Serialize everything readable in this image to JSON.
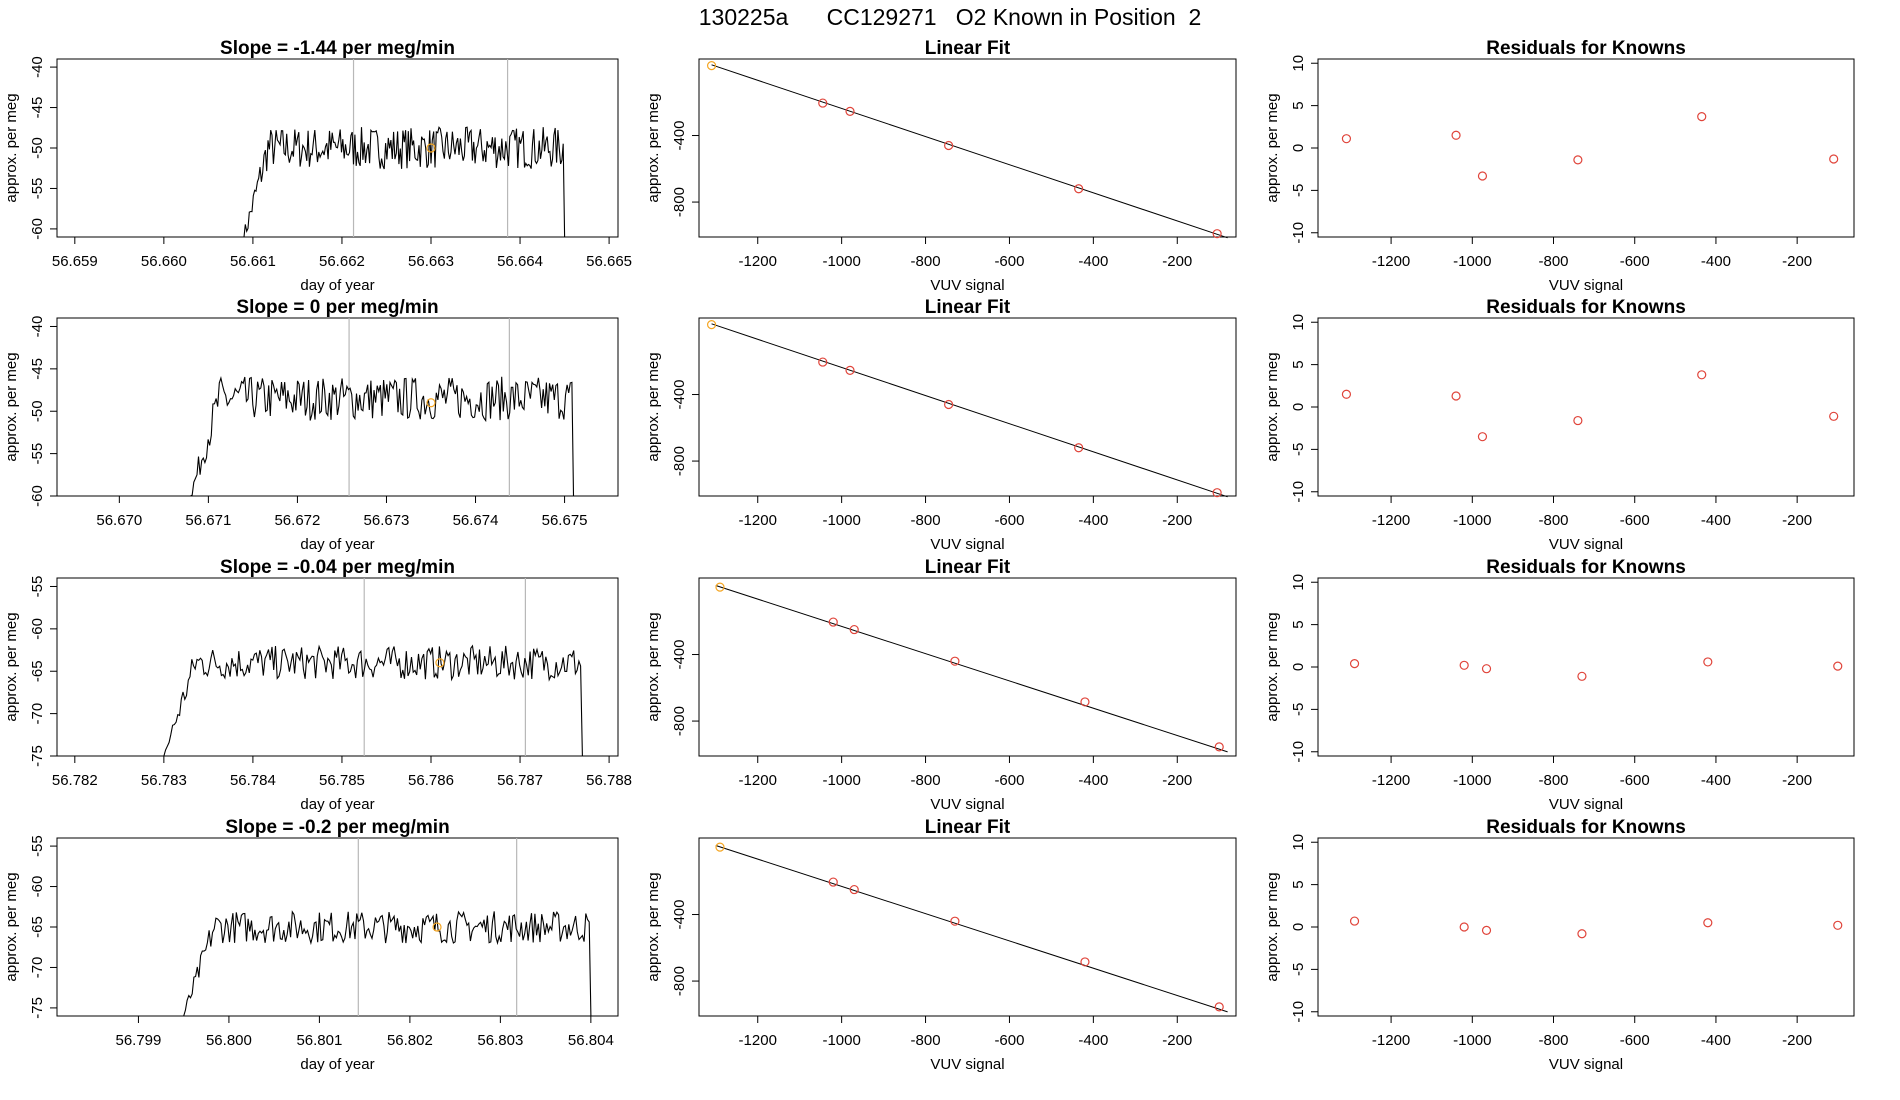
{
  "page_title": "130225a      CC129271   O2 Known in Position  2",
  "colors": {
    "line": "#000000",
    "marker_red": "#e0443a",
    "marker_orange": "#f5a623",
    "vline": "#b8b8b8"
  },
  "chart_data": [
    {
      "type": "line",
      "title": "Slope =  -1.44  per meg/min",
      "xlabel": "day of year",
      "ylabel": "approx. per meg",
      "xlim": [
        56.6588,
        56.6651
      ],
      "ylim": [
        -61,
        -39
      ],
      "xticks": [
        "56.659",
        "56.660",
        "56.661",
        "56.662",
        "56.663",
        "56.664",
        "56.665"
      ],
      "xtick_values": [
        56.659,
        56.66,
        56.661,
        56.662,
        56.663,
        56.664,
        56.665
      ],
      "yticks": [
        "-60",
        "-55",
        "-50",
        "-45",
        "-40"
      ],
      "ytick_values": [
        -60,
        -55,
        -50,
        -45,
        -40
      ],
      "trace_start": 56.6609,
      "trace_end": 56.6645,
      "trace_mean": -50,
      "trace_noise": 2.6,
      "vlines": [
        56.66213,
        56.66386
      ],
      "marker": {
        "x": 56.663,
        "y": -50
      }
    },
    {
      "type": "scatter",
      "title": "Linear Fit",
      "xlabel": "VUV signal",
      "ylabel": "approx. per meg",
      "xlim": [
        -1340,
        -60
      ],
      "ylim": [
        -1010,
        60
      ],
      "xticks": [
        "-1200",
        "-1000",
        "-800",
        "-600",
        "-400",
        "-200"
      ],
      "xtick_values": [
        -1200,
        -1000,
        -800,
        -600,
        -400,
        -200
      ],
      "yticks": [
        "-400",
        "-800"
      ],
      "ytick_values": [
        -400,
        -800
      ],
      "points": [
        [
          -1310,
          20
        ],
        [
          -1045,
          -205
        ],
        [
          -980,
          -255
        ],
        [
          -745,
          -460
        ],
        [
          -435,
          -720
        ],
        [
          -105,
          -990
        ]
      ],
      "fit": [
        [
          -1310,
          25
        ],
        [
          -80,
          -1015
        ]
      ]
    },
    {
      "type": "scatter",
      "title": "Residuals for Knowns",
      "xlabel": "VUV signal",
      "ylabel": "approx. per meg",
      "xlim": [
        -1380,
        -60
      ],
      "ylim": [
        -10.5,
        10.5
      ],
      "xticks": [
        "-1200",
        "-1000",
        "-800",
        "-600",
        "-400",
        "-200"
      ],
      "xtick_values": [
        -1200,
        -1000,
        -800,
        -600,
        -400,
        -200
      ],
      "yticks": [
        "-10",
        "-5",
        "0",
        "5",
        "10"
      ],
      "ytick_values": [
        -10,
        -5,
        0,
        5,
        10
      ],
      "points": [
        [
          -1310,
          1.1
        ],
        [
          -1040,
          1.5
        ],
        [
          -975,
          -3.3
        ],
        [
          -740,
          -1.4
        ],
        [
          -435,
          3.7
        ],
        [
          -110,
          -1.3
        ]
      ]
    },
    {
      "type": "line",
      "title": "Slope =  0  per meg/min",
      "xlabel": "day of year",
      "ylabel": "approx. per meg",
      "xlim": [
        56.6693,
        56.6756
      ],
      "ylim": [
        -60,
        -39
      ],
      "xticks": [
        "56.670",
        "56.671",
        "56.672",
        "56.673",
        "56.674",
        "56.675"
      ],
      "xtick_values": [
        56.67,
        56.671,
        56.672,
        56.673,
        56.674,
        56.675
      ],
      "yticks": [
        "-60",
        "-55",
        "-50",
        "-45",
        "-40"
      ],
      "ytick_values": [
        -60,
        -55,
        -50,
        -45,
        -40
      ],
      "trace_start": 56.6708,
      "trace_end": 56.6751,
      "trace_mean": -48.5,
      "trace_noise": 2.6,
      "vlines": [
        56.67258,
        56.67438
      ],
      "marker": {
        "x": 56.6735,
        "y": -49
      }
    },
    {
      "type": "scatter",
      "title": "Linear Fit",
      "xlabel": "VUV signal",
      "ylabel": "approx. per meg",
      "xlim": [
        -1340,
        -60
      ],
      "ylim": [
        -1010,
        60
      ],
      "xticks": [
        "-1200",
        "-1000",
        "-800",
        "-600",
        "-400",
        "-200"
      ],
      "xtick_values": [
        -1200,
        -1000,
        -800,
        -600,
        -400,
        -200
      ],
      "yticks": [
        "-400",
        "-800"
      ],
      "ytick_values": [
        -400,
        -800
      ],
      "points": [
        [
          -1310,
          20
        ],
        [
          -1045,
          -205
        ],
        [
          -980,
          -255
        ],
        [
          -745,
          -460
        ],
        [
          -435,
          -720
        ],
        [
          -105,
          -990
        ]
      ],
      "fit": [
        [
          -1310,
          25
        ],
        [
          -80,
          -1015
        ]
      ]
    },
    {
      "type": "scatter",
      "title": "Residuals for Knowns",
      "xlabel": "VUV signal",
      "ylabel": "approx. per meg",
      "xlim": [
        -1380,
        -60
      ],
      "ylim": [
        -10.5,
        10.5
      ],
      "xticks": [
        "-1200",
        "-1000",
        "-800",
        "-600",
        "-400",
        "-200"
      ],
      "xtick_values": [
        -1200,
        -1000,
        -800,
        -600,
        -400,
        -200
      ],
      "yticks": [
        "-10",
        "-5",
        "0",
        "5",
        "10"
      ],
      "ytick_values": [
        -10,
        -5,
        0,
        5,
        10
      ],
      "points": [
        [
          -1310,
          1.5
        ],
        [
          -1040,
          1.3
        ],
        [
          -975,
          -3.5
        ],
        [
          -740,
          -1.6
        ],
        [
          -435,
          3.8
        ],
        [
          -110,
          -1.1
        ]
      ]
    },
    {
      "type": "line",
      "title": "Slope =  -0.04  per meg/min",
      "xlabel": "day of year",
      "ylabel": "approx. per meg",
      "xlim": [
        56.7818,
        56.7881
      ],
      "ylim": [
        -75,
        -54
      ],
      "xticks": [
        "56.782",
        "56.783",
        "56.784",
        "56.785",
        "56.786",
        "56.787",
        "56.788"
      ],
      "xtick_values": [
        56.782,
        56.783,
        56.784,
        56.785,
        56.786,
        56.787,
        56.788
      ],
      "yticks": [
        "-75",
        "-70",
        "-65",
        "-60",
        "-55"
      ],
      "ytick_values": [
        -75,
        -70,
        -65,
        -60,
        -55
      ],
      "trace_start": 56.783,
      "trace_end": 56.7877,
      "trace_mean": -64,
      "trace_noise": 2.0,
      "vlines": [
        56.78525,
        56.78706
      ],
      "marker": {
        "x": 56.7861,
        "y": -64
      }
    },
    {
      "type": "scatter",
      "title": "Linear Fit",
      "xlabel": "VUV signal",
      "ylabel": "approx. per meg",
      "xlim": [
        -1340,
        -60
      ],
      "ylim": [
        -1010,
        60
      ],
      "xticks": [
        "-1200",
        "-1000",
        "-800",
        "-600",
        "-400",
        "-200"
      ],
      "xtick_values": [
        -1200,
        -1000,
        -800,
        -600,
        -400,
        -200
      ],
      "yticks": [
        "-400",
        "-800"
      ],
      "ytick_values": [
        -400,
        -800
      ],
      "points": [
        [
          -1290,
          5
        ],
        [
          -1020,
          -205
        ],
        [
          -970,
          -250
        ],
        [
          -730,
          -440
        ],
        [
          -420,
          -685
        ],
        [
          -100,
          -955
        ]
      ],
      "fit": [
        [
          -1300,
          15
        ],
        [
          -80,
          -985
        ]
      ]
    },
    {
      "type": "scatter",
      "title": "Residuals for Knowns",
      "xlabel": "VUV signal",
      "ylabel": "approx. per meg",
      "xlim": [
        -1380,
        -60
      ],
      "ylim": [
        -10.5,
        10.5
      ],
      "xticks": [
        "-1200",
        "-1000",
        "-800",
        "-600",
        "-400",
        "-200"
      ],
      "xtick_values": [
        -1200,
        -1000,
        -800,
        -600,
        -400,
        -200
      ],
      "yticks": [
        "-10",
        "-5",
        "0",
        "5",
        "10"
      ],
      "ytick_values": [
        -10,
        -5,
        0,
        5,
        10
      ],
      "points": [
        [
          -1290,
          0.4
        ],
        [
          -1020,
          0.2
        ],
        [
          -965,
          -0.2
        ],
        [
          -730,
          -1.1
        ],
        [
          -420,
          0.6
        ],
        [
          -100,
          0.1
        ]
      ]
    },
    {
      "type": "line",
      "title": "Slope =  -0.2  per meg/min",
      "xlabel": "day of year",
      "ylabel": "approx. per meg",
      "xlim": [
        56.7981,
        56.8043
      ],
      "ylim": [
        -76,
        -54
      ],
      "xticks": [
        "56.799",
        "56.800",
        "56.801",
        "56.802",
        "56.803",
        "56.804"
      ],
      "xtick_values": [
        56.799,
        56.8,
        56.801,
        56.802,
        56.803,
        56.804
      ],
      "yticks": [
        "-75",
        "-70",
        "-65",
        "-60",
        "-55"
      ],
      "ytick_values": [
        -75,
        -70,
        -65,
        -60,
        -55
      ],
      "trace_start": 56.7995,
      "trace_end": 56.804,
      "trace_mean": -65,
      "trace_noise": 2.0,
      "vlines": [
        56.80143,
        56.80318
      ],
      "marker": {
        "x": 56.8023,
        "y": -65
      }
    },
    {
      "type": "scatter",
      "title": "Linear Fit",
      "xlabel": "VUV signal",
      "ylabel": "approx. per meg",
      "xlim": [
        -1340,
        -60
      ],
      "ylim": [
        -1010,
        60
      ],
      "xticks": [
        "-1200",
        "-1000",
        "-800",
        "-600",
        "-400",
        "-200"
      ],
      "xtick_values": [
        -1200,
        -1000,
        -800,
        -600,
        -400,
        -200
      ],
      "yticks": [
        "-400",
        "-800"
      ],
      "ytick_values": [
        -400,
        -800
      ],
      "points": [
        [
          -1290,
          5
        ],
        [
          -1020,
          -205
        ],
        [
          -970,
          -250
        ],
        [
          -730,
          -440
        ],
        [
          -420,
          -685
        ],
        [
          -100,
          -955
        ]
      ],
      "fit": [
        [
          -1300,
          15
        ],
        [
          -80,
          -985
        ]
      ]
    },
    {
      "type": "scatter",
      "title": "Residuals for Knowns",
      "xlabel": "VUV signal",
      "ylabel": "approx. per meg",
      "xlim": [
        -1380,
        -60
      ],
      "ylim": [
        -10.5,
        10.5
      ],
      "xticks": [
        "-1200",
        "-1000",
        "-800",
        "-600",
        "-400",
        "-200"
      ],
      "xtick_values": [
        -1200,
        -1000,
        -800,
        -600,
        -400,
        -200
      ],
      "yticks": [
        "-10",
        "-5",
        "0",
        "5",
        "10"
      ],
      "ytick_values": [
        -10,
        -5,
        0,
        5,
        10
      ],
      "points": [
        [
          -1290,
          0.7
        ],
        [
          -1020,
          0.0
        ],
        [
          -965,
          -0.4
        ],
        [
          -730,
          -0.8
        ],
        [
          -420,
          0.5
        ],
        [
          -100,
          0.2
        ]
      ]
    }
  ]
}
